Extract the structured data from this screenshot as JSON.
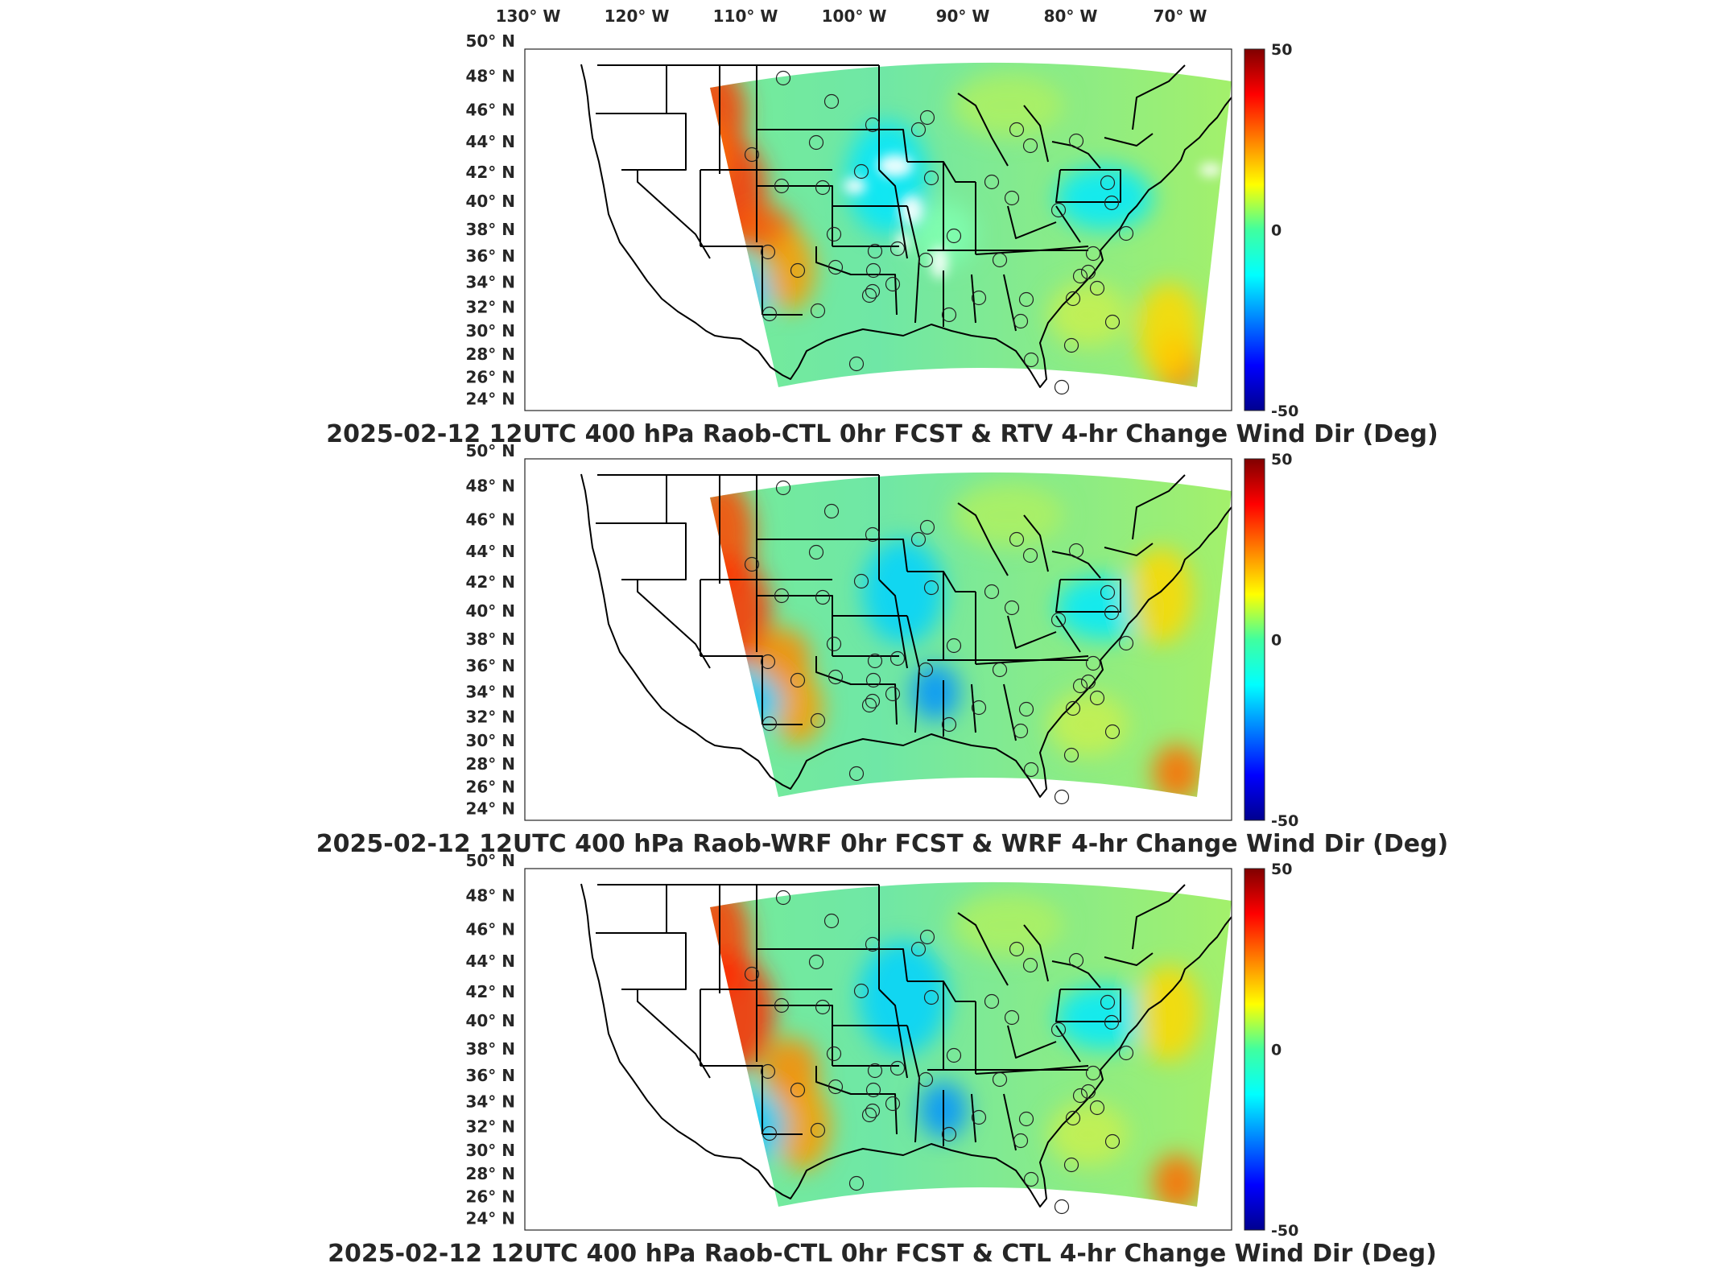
{
  "top_lon_ticks": [
    "130",
    "120",
    "110",
    "100",
    "90",
    "80",
    "70"
  ],
  "lon_suffix": "W",
  "lat_ticks": [
    "50",
    "48",
    "46",
    "44",
    "42",
    "40",
    "38",
    "36",
    "34",
    "32",
    "30",
    "28",
    "26",
    "24"
  ],
  "lat_suffix": "N",
  "panels": [
    {
      "title": "2025-02-12 12UTC 400 hPa Raob-CTL 0hr FCST & RTV 4-hr Change Wind Dir (Deg)",
      "colorbar": {
        "max": "50",
        "mid": "0",
        "min": "-50"
      }
    },
    {
      "title": "2025-02-12 12UTC 400 hPa Raob-WRF 0hr FCST & WRF 4-hr Change Wind Dir (Deg)",
      "colorbar": {
        "max": "50",
        "mid": "0",
        "min": "-50"
      }
    },
    {
      "title": "2025-02-12 12UTC 400 hPa Raob-CTL 0hr FCST & CTL 4-hr Change Wind Dir (Deg)",
      "colorbar": {
        "max": "50",
        "mid": "0",
        "min": "-50"
      }
    }
  ],
  "colormap": [
    "#00008f",
    "#0000ff",
    "#00ffff",
    "#ffff00",
    "#ff0000",
    "#800000"
  ]
}
